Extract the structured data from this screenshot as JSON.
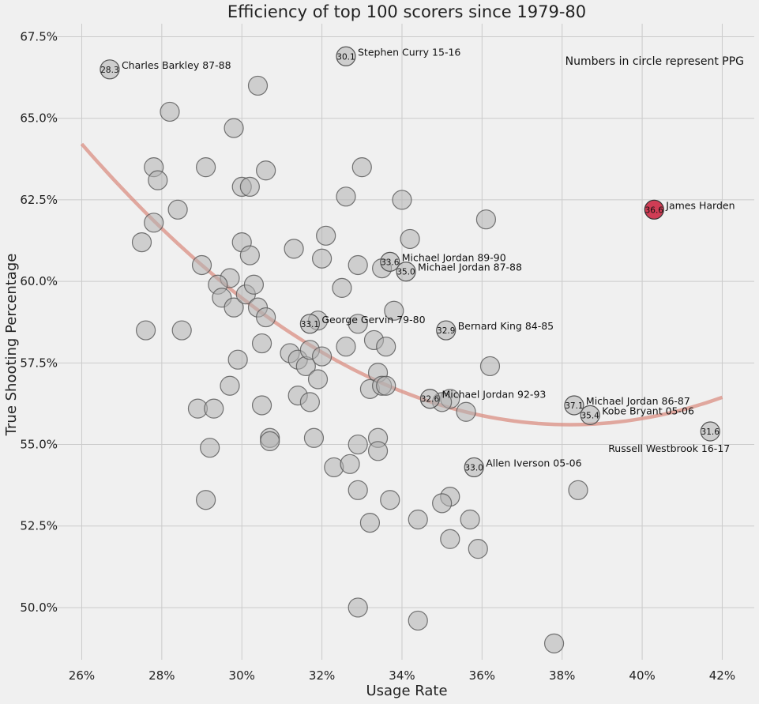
{
  "chart_data": {
    "type": "scatter",
    "title": "Efficiency of top 100 scorers since 1979-80",
    "xlabel": "Usage Rate",
    "ylabel": "True Shooting Percentage",
    "xlim": [
      25.3,
      42.8
    ],
    "ylim": [
      48.4,
      67.9
    ],
    "grid": true,
    "x_ticks": [
      {
        "value": 26,
        "label": "26%"
      },
      {
        "value": 28,
        "label": "28%"
      },
      {
        "value": 30,
        "label": "30%"
      },
      {
        "value": 32,
        "label": "32%"
      },
      {
        "value": 34,
        "label": "34%"
      },
      {
        "value": 36,
        "label": "36%"
      },
      {
        "value": 38,
        "label": "38%"
      },
      {
        "value": 40,
        "label": "40%"
      },
      {
        "value": 42,
        "label": "42%"
      }
    ],
    "y_ticks": [
      {
        "value": 50.0,
        "label": "50.0%"
      },
      {
        "value": 52.5,
        "label": "52.5%"
      },
      {
        "value": 55.0,
        "label": "55.0%"
      },
      {
        "value": 57.5,
        "label": "57.5%"
      },
      {
        "value": 60.0,
        "label": "60.0%"
      },
      {
        "value": 62.5,
        "label": "62.5%"
      },
      {
        "value": 65.0,
        "label": "65.0%"
      },
      {
        "value": 67.5,
        "label": "67.5%"
      }
    ],
    "note": "Numbers in circle represent PPG",
    "trend_color": "#d9877a",
    "point_color": "#b3b3b3",
    "highlight_color": "#c8102e",
    "labeled_points": [
      {
        "x": 26.7,
        "y": 66.5,
        "ppg": "28.3",
        "label": "Charles Barkley 87-88"
      },
      {
        "x": 32.6,
        "y": 66.9,
        "ppg": "30.1",
        "label": "Stephen Curry 15-16"
      },
      {
        "x": 40.3,
        "y": 62.2,
        "ppg": "36.6",
        "label": "James Harden",
        "highlight": true
      },
      {
        "x": 33.7,
        "y": 60.6,
        "ppg": "33.6",
        "label": "Michael Jordan 89-90"
      },
      {
        "x": 34.1,
        "y": 60.3,
        "ppg": "35.0",
        "label": "Michael Jordan 87-88"
      },
      {
        "x": 31.7,
        "y": 58.7,
        "ppg": "33.1",
        "label": "George Gervin 79-80"
      },
      {
        "x": 35.1,
        "y": 58.5,
        "ppg": "32.9",
        "label": "Bernard King 84-85"
      },
      {
        "x": 34.7,
        "y": 56.4,
        "ppg": "32.6",
        "label": "Michael Jordan 92-93"
      },
      {
        "x": 38.3,
        "y": 56.2,
        "ppg": "37.1",
        "label": "Michael Jordan 86-87"
      },
      {
        "x": 38.7,
        "y": 55.9,
        "ppg": "35.4",
        "label": "Kobe Bryant 05-06"
      },
      {
        "x": 41.7,
        "y": 55.4,
        "ppg": "31.6",
        "label": "Russell Westbrook 16-17"
      },
      {
        "x": 35.8,
        "y": 54.3,
        "ppg": "33.0",
        "label": "Allen Iverson 05-06"
      }
    ],
    "points": [
      [
        28.2,
        65.2
      ],
      [
        29.8,
        64.7
      ],
      [
        30.4,
        66.0
      ],
      [
        27.8,
        63.5
      ],
      [
        27.9,
        63.1
      ],
      [
        29.1,
        63.5
      ],
      [
        30.6,
        63.4
      ],
      [
        30.0,
        62.9
      ],
      [
        30.2,
        62.9
      ],
      [
        28.4,
        62.2
      ],
      [
        27.8,
        61.8
      ],
      [
        27.5,
        61.2
      ],
      [
        30.0,
        61.2
      ],
      [
        30.2,
        60.8
      ],
      [
        29.0,
        60.5
      ],
      [
        31.3,
        61.0
      ],
      [
        32.0,
        60.7
      ],
      [
        32.1,
        61.4
      ],
      [
        32.6,
        62.6
      ],
      [
        33.0,
        63.5
      ],
      [
        34.0,
        62.5
      ],
      [
        34.2,
        61.3
      ],
      [
        36.1,
        61.9
      ],
      [
        29.7,
        60.1
      ],
      [
        29.4,
        59.9
      ],
      [
        29.5,
        59.5
      ],
      [
        29.8,
        59.2
      ],
      [
        30.1,
        59.6
      ],
      [
        30.3,
        59.9
      ],
      [
        30.4,
        59.2
      ],
      [
        30.6,
        58.9
      ],
      [
        32.5,
        59.8
      ],
      [
        32.9,
        60.5
      ],
      [
        33.5,
        60.4
      ],
      [
        33.8,
        59.1
      ],
      [
        31.9,
        58.8
      ],
      [
        32.9,
        58.7
      ],
      [
        27.6,
        58.5
      ],
      [
        28.5,
        58.5
      ],
      [
        29.9,
        57.6
      ],
      [
        30.5,
        58.1
      ],
      [
        31.2,
        57.8
      ],
      [
        31.4,
        57.6
      ],
      [
        31.6,
        57.4
      ],
      [
        31.7,
        57.9
      ],
      [
        32.0,
        57.7
      ],
      [
        32.6,
        58.0
      ],
      [
        33.3,
        58.2
      ],
      [
        33.6,
        58.0
      ],
      [
        31.9,
        57.0
      ],
      [
        33.4,
        57.2
      ],
      [
        29.7,
        56.8
      ],
      [
        31.4,
        56.5
      ],
      [
        31.7,
        56.3
      ],
      [
        33.2,
        56.7
      ],
      [
        33.5,
        56.8
      ],
      [
        33.6,
        56.8
      ],
      [
        35.2,
        56.4
      ],
      [
        35.0,
        56.3
      ],
      [
        35.6,
        56.0
      ],
      [
        36.2,
        57.4
      ],
      [
        28.9,
        56.1
      ],
      [
        29.3,
        56.1
      ],
      [
        30.5,
        56.2
      ],
      [
        30.7,
        55.2
      ],
      [
        30.7,
        55.1
      ],
      [
        31.8,
        55.2
      ],
      [
        32.9,
        55.0
      ],
      [
        33.4,
        55.2
      ],
      [
        33.4,
        54.8
      ],
      [
        29.2,
        54.9
      ],
      [
        32.3,
        54.3
      ],
      [
        32.7,
        54.4
      ],
      [
        29.1,
        53.3
      ],
      [
        32.9,
        53.6
      ],
      [
        33.7,
        53.3
      ],
      [
        35.2,
        53.4
      ],
      [
        35.0,
        53.2
      ],
      [
        38.4,
        53.6
      ],
      [
        33.2,
        52.6
      ],
      [
        34.4,
        52.7
      ],
      [
        35.7,
        52.7
      ],
      [
        35.2,
        52.1
      ],
      [
        35.9,
        51.8
      ],
      [
        32.9,
        50.0
      ],
      [
        34.4,
        49.6
      ],
      [
        37.8,
        48.9
      ]
    ]
  }
}
